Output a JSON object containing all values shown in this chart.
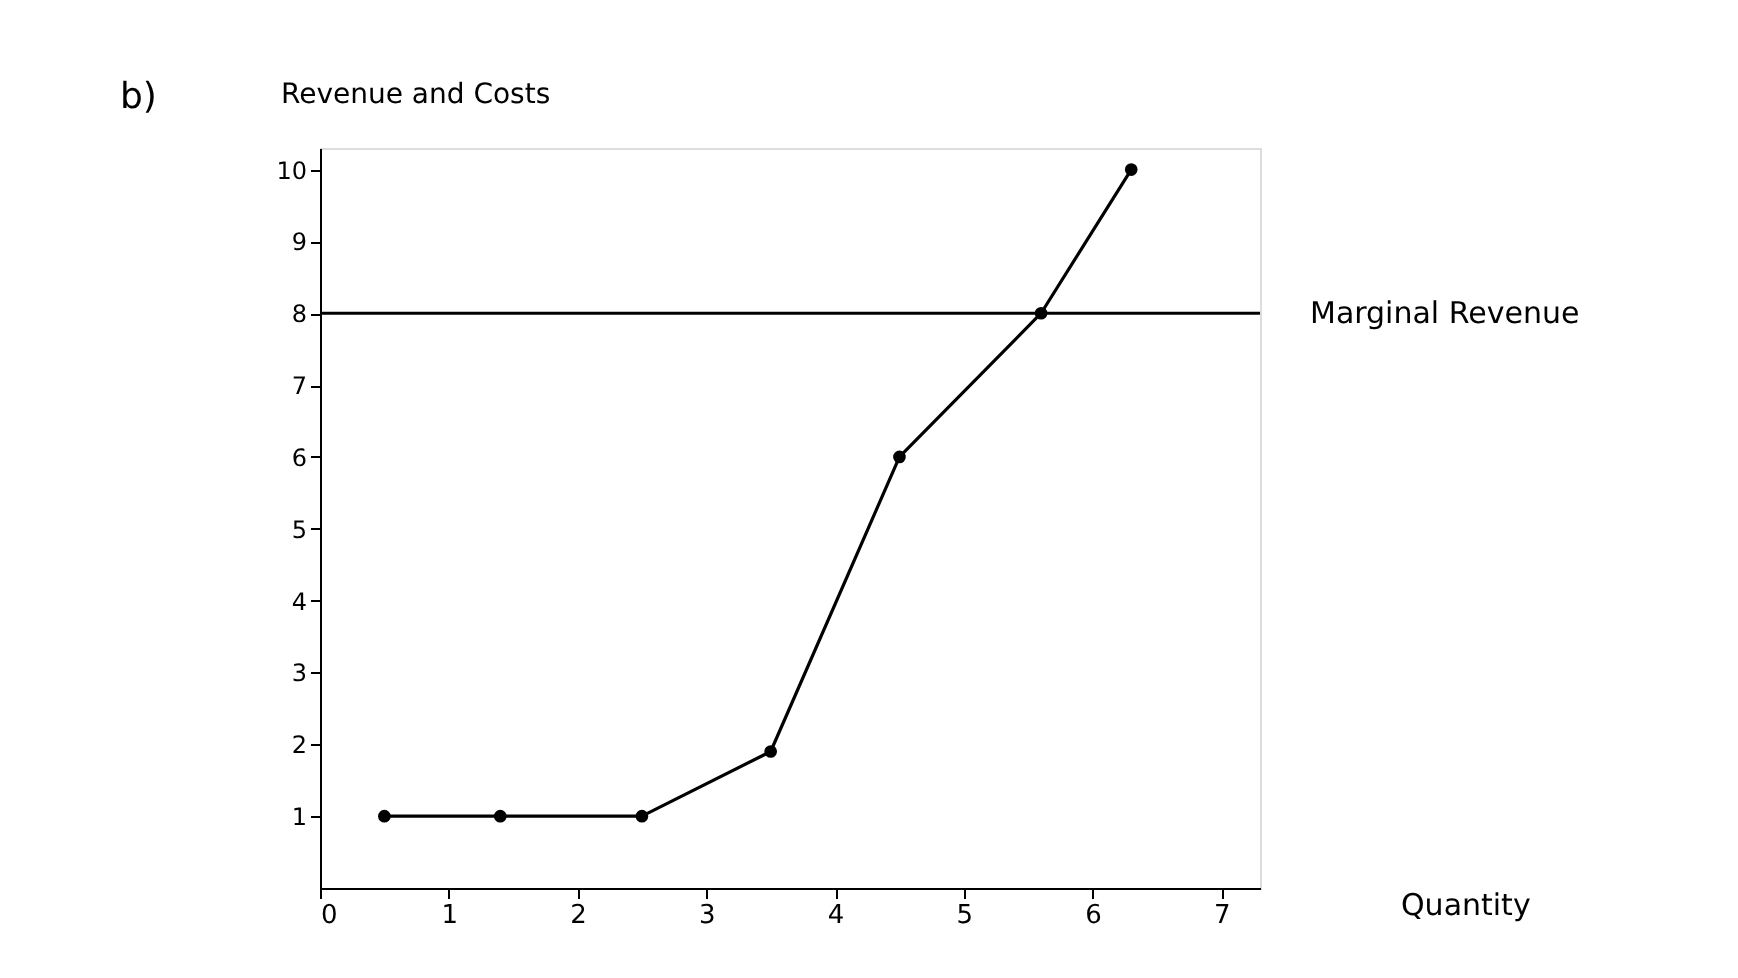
{
  "chart_data": {
    "type": "line",
    "xlabel": "Quantity",
    "ylabel": "Revenue and Costs",
    "x": [
      0.5,
      1.4,
      2.5,
      3.5,
      4.5,
      5.6,
      6.3
    ],
    "series": [
      {
        "color": "#000000",
        "values": [
          1,
          1,
          1,
          1.9,
          6,
          8,
          10
        ]
      }
    ],
    "xlim": [
      0,
      7.3
    ],
    "ylim": [
      0,
      10.3
    ],
    "xticks": [
      0,
      1,
      2,
      3,
      4,
      5,
      6,
      7
    ],
    "yticks": [
      1,
      2,
      3,
      4,
      5,
      6,
      7,
      8,
      9,
      10
    ],
    "ref_lines": [
      {
        "axis": "y",
        "value": 8,
        "label": "Marginal Revenue",
        "color": "#000000"
      }
    ],
    "annotations": [
      "b)"
    ],
    "grid": false,
    "marker": "circle",
    "line_style": "solid"
  }
}
